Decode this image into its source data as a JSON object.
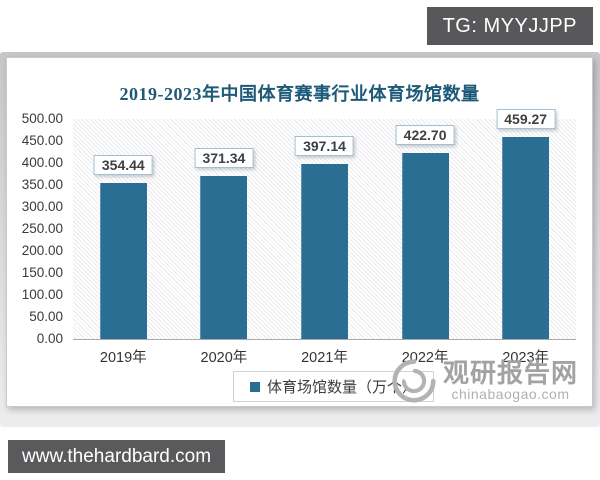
{
  "badges": {
    "top_right": "TG: MYYJJPP",
    "bottom_left": "www.thehardbard.com"
  },
  "chart_data": {
    "type": "bar",
    "title": "2019-2023年中国体育赛事行业体育场馆数量",
    "categories": [
      "2019年",
      "2020年",
      "2021年",
      "2022年",
      "2023年"
    ],
    "values": [
      354.44,
      371.34,
      397.14,
      422.7,
      459.27
    ],
    "value_labels": [
      "354.44",
      "371.34",
      "397.14",
      "422.70",
      "459.27"
    ],
    "legend": "体育场馆数量（万个）",
    "xlabel": "",
    "ylabel": "",
    "ylim": [
      0,
      500
    ],
    "y_ticks": [
      "500.00",
      "450.00",
      "400.00",
      "350.00",
      "300.00",
      "250.00",
      "200.00",
      "150.00",
      "100.00",
      "50.00",
      "0.00"
    ],
    "grid": false,
    "legend_position": "bottom",
    "bar_color": "#2b6e94",
    "title_color": "#1d5a78",
    "plot_pattern": "diagonal-hatch"
  },
  "watermark": {
    "name": "观研报告网",
    "domain": "chinabaogao.com"
  }
}
